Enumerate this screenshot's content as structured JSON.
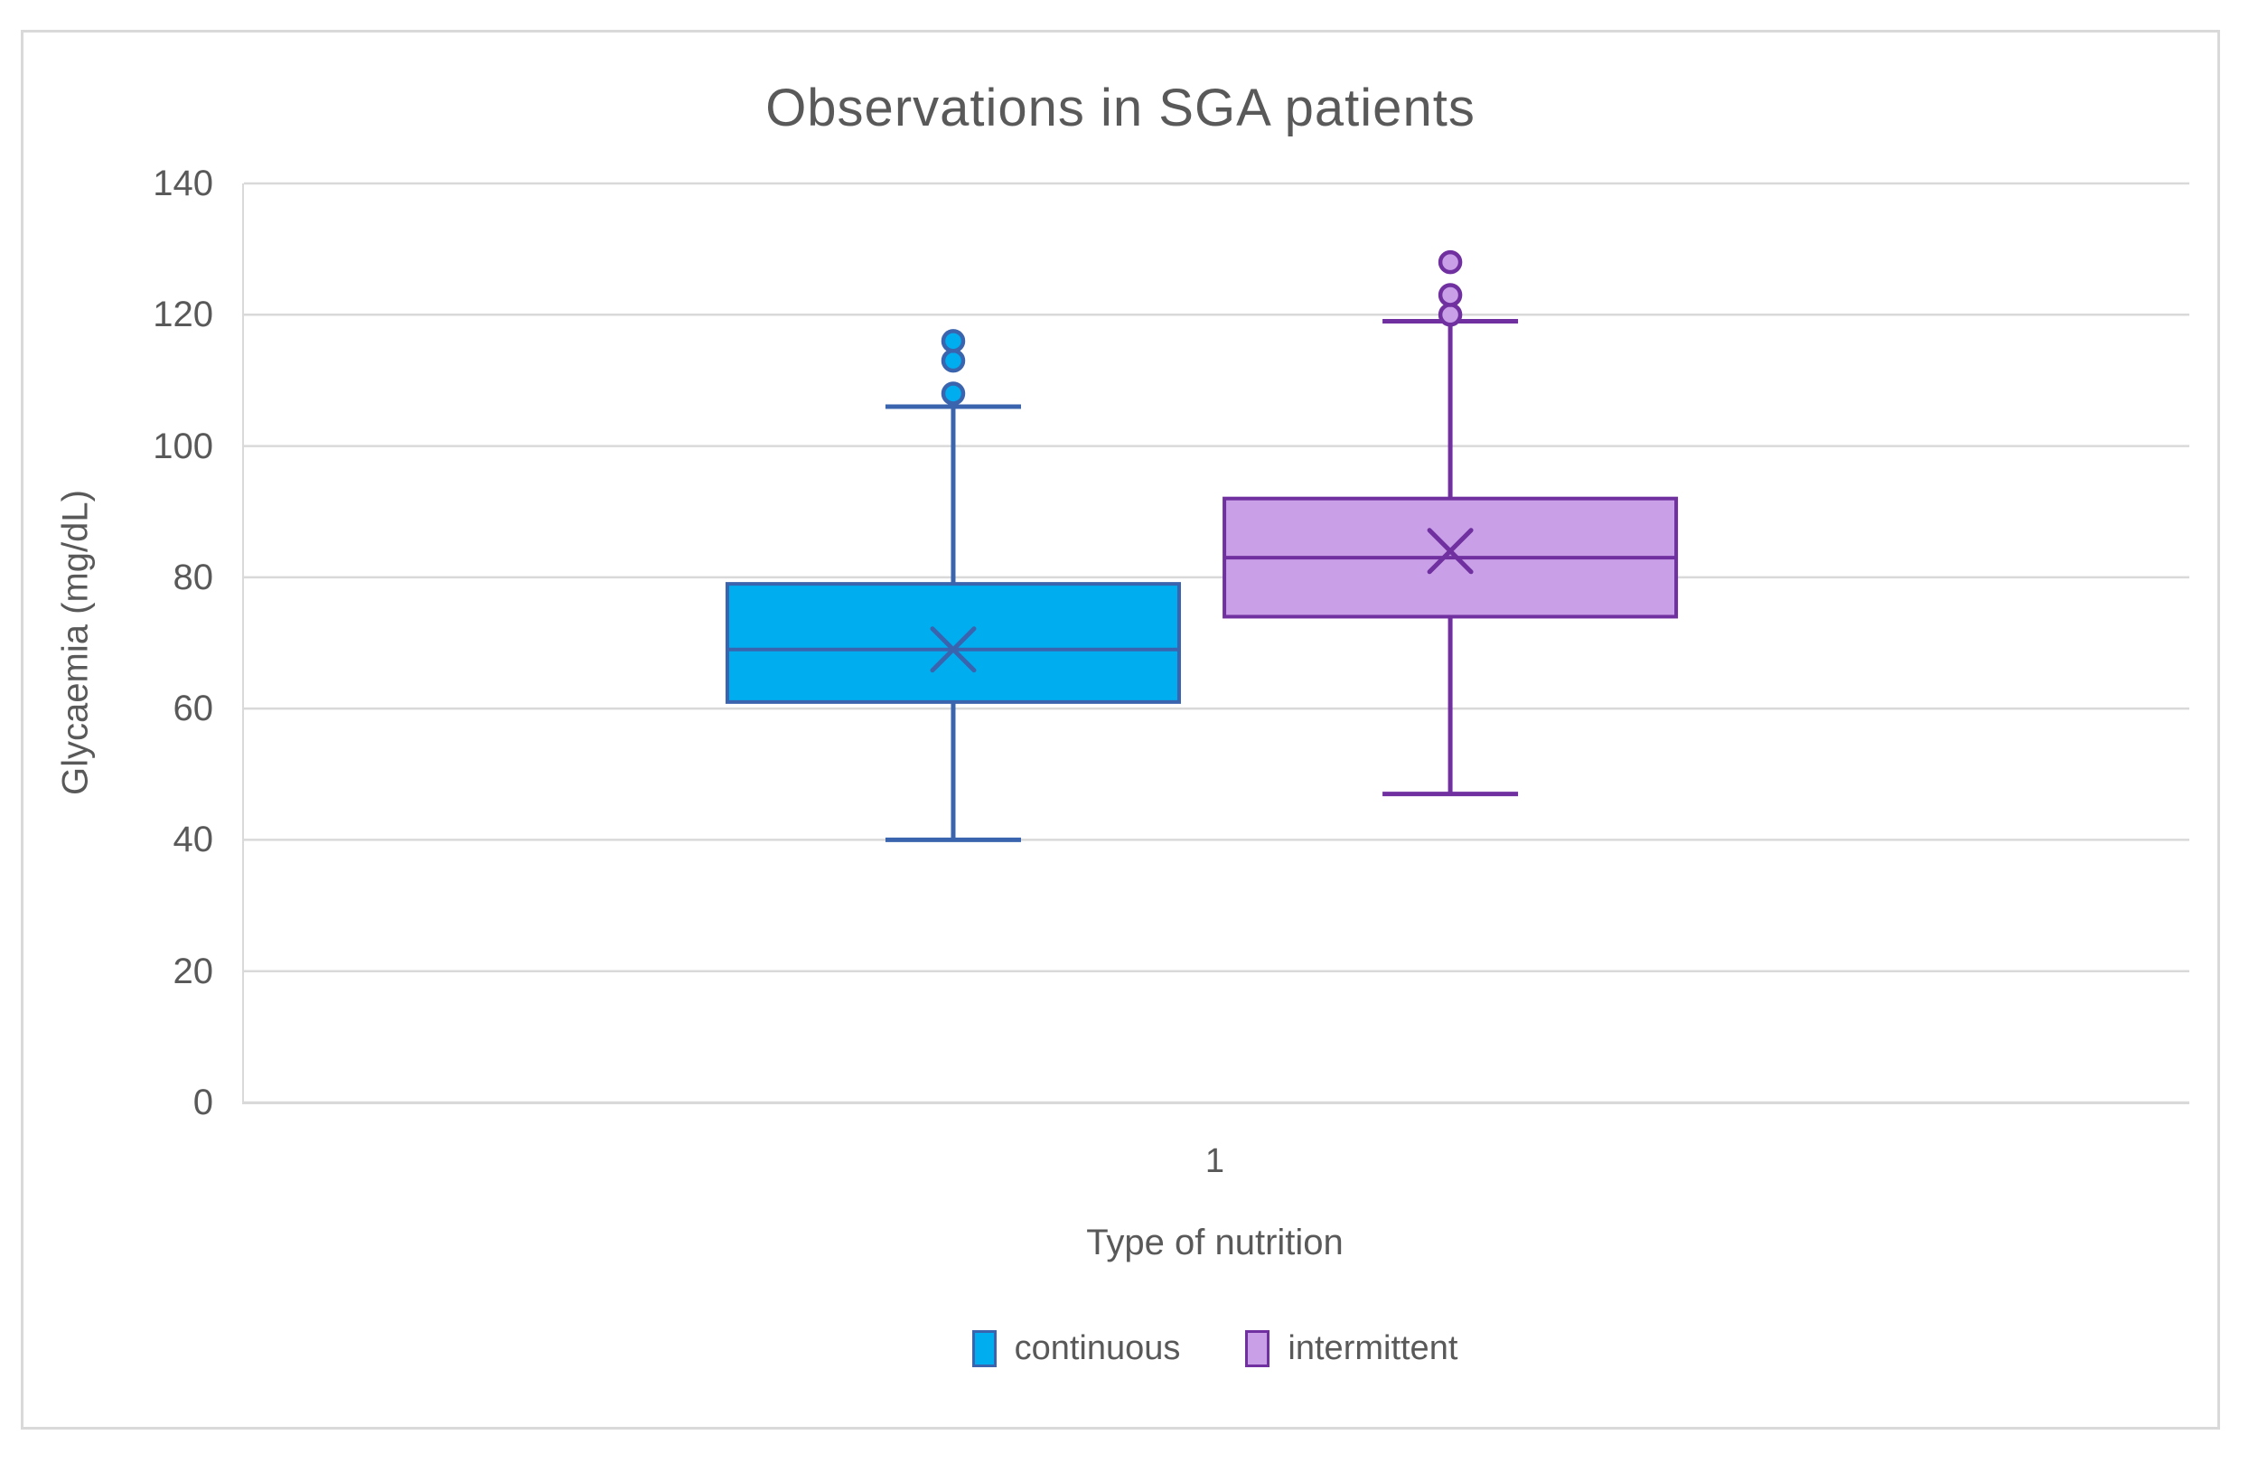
{
  "title": "Observations in SGA patients",
  "y_axis": {
    "label": "Glycaemia (mg/dL)",
    "ticks": [
      140,
      120,
      100,
      80,
      60,
      40,
      20,
      0
    ]
  },
  "x_axis": {
    "tick_label": "1",
    "label": "Type of nutrition"
  },
  "legend": {
    "items": [
      {
        "label": "continuous",
        "fill": "#00AEEF",
        "stroke": "#3A64AD"
      },
      {
        "label": "intermittent",
        "fill": "#C9A0E8",
        "stroke": "#7030A0"
      }
    ]
  },
  "colors": {
    "grid": "#D9D9D9",
    "frame_border": "#D9D9D9",
    "axis_text": "#595959",
    "title_text": "#595959",
    "background": "#FFFFFF"
  },
  "chart_data": {
    "type": "boxplot",
    "title": "Observations in SGA patients",
    "xlabel": "Type of nutrition",
    "ylabel": "Glycaemia (mg/dL)",
    "ylim": [
      0,
      140
    ],
    "y_tick_step": 20,
    "grid": true,
    "legend_position": "bottom",
    "categories": [
      "1"
    ],
    "series": [
      {
        "name": "continuous",
        "fill": "#00AEEF",
        "stroke": "#3A64AD",
        "min": 40,
        "q1": 61,
        "median": 69,
        "mean": 69,
        "q3": 79,
        "max": 106,
        "outliers": [
          108,
          113,
          116
        ]
      },
      {
        "name": "intermittent",
        "fill": "#C9A0E8",
        "stroke": "#7030A0",
        "min": 47,
        "q1": 74,
        "median": 83,
        "mean": 84,
        "q3": 92,
        "max": 119,
        "outliers": [
          120,
          123,
          128
        ]
      }
    ]
  }
}
